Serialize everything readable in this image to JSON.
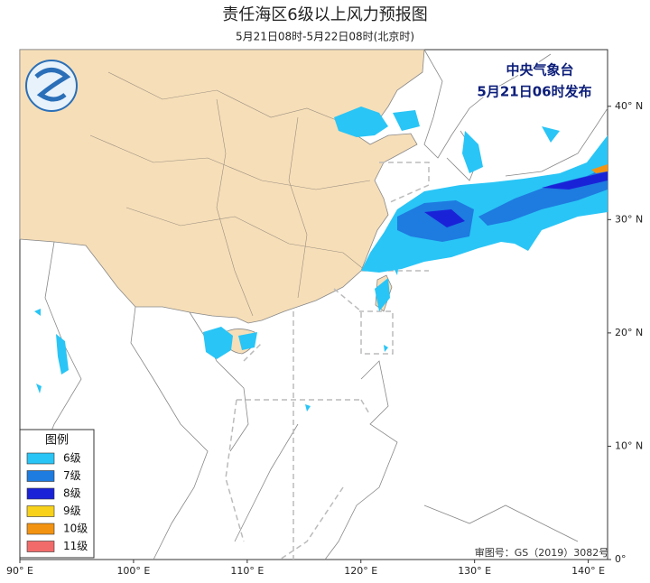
{
  "header": {
    "title": "责任海区6级以上风力预报图",
    "subtitle": "5月21日08时-5月22日08时(北京时)"
  },
  "issuer": {
    "name": "中央气象台",
    "issued": "5月21日06时发布"
  },
  "map": {
    "lonlim": [
      90,
      141.7
    ],
    "latlim": [
      0,
      45
    ],
    "lon_ticks": [
      {
        "value": 90,
        "label": "90° E"
      },
      {
        "value": 100,
        "label": "100° E"
      },
      {
        "value": 110,
        "label": "110° E"
      },
      {
        "value": 120,
        "label": "120° E"
      },
      {
        "value": 130,
        "label": "130° E"
      },
      {
        "value": 140,
        "label": "140° E"
      }
    ],
    "lat_ticks": [
      {
        "value": 0,
        "label": "0°"
      },
      {
        "value": 10,
        "label": "10° N"
      },
      {
        "value": 20,
        "label": "20° N"
      },
      {
        "value": 30,
        "label": "30° N"
      },
      {
        "value": 40,
        "label": "40° N"
      }
    ]
  },
  "legend": {
    "title": "图例",
    "items": [
      {
        "label": "6级",
        "color": "#29c5f6"
      },
      {
        "label": "7级",
        "color": "#1e7be0"
      },
      {
        "label": "8级",
        "color": "#1a22d8"
      },
      {
        "label": "9级",
        "color": "#f7d11a"
      },
      {
        "label": "10级",
        "color": "#f39312"
      },
      {
        "label": "11级",
        "color": "#f26b6b"
      }
    ]
  },
  "footer": {
    "approval": "审图号：GS（2019）3082号"
  }
}
